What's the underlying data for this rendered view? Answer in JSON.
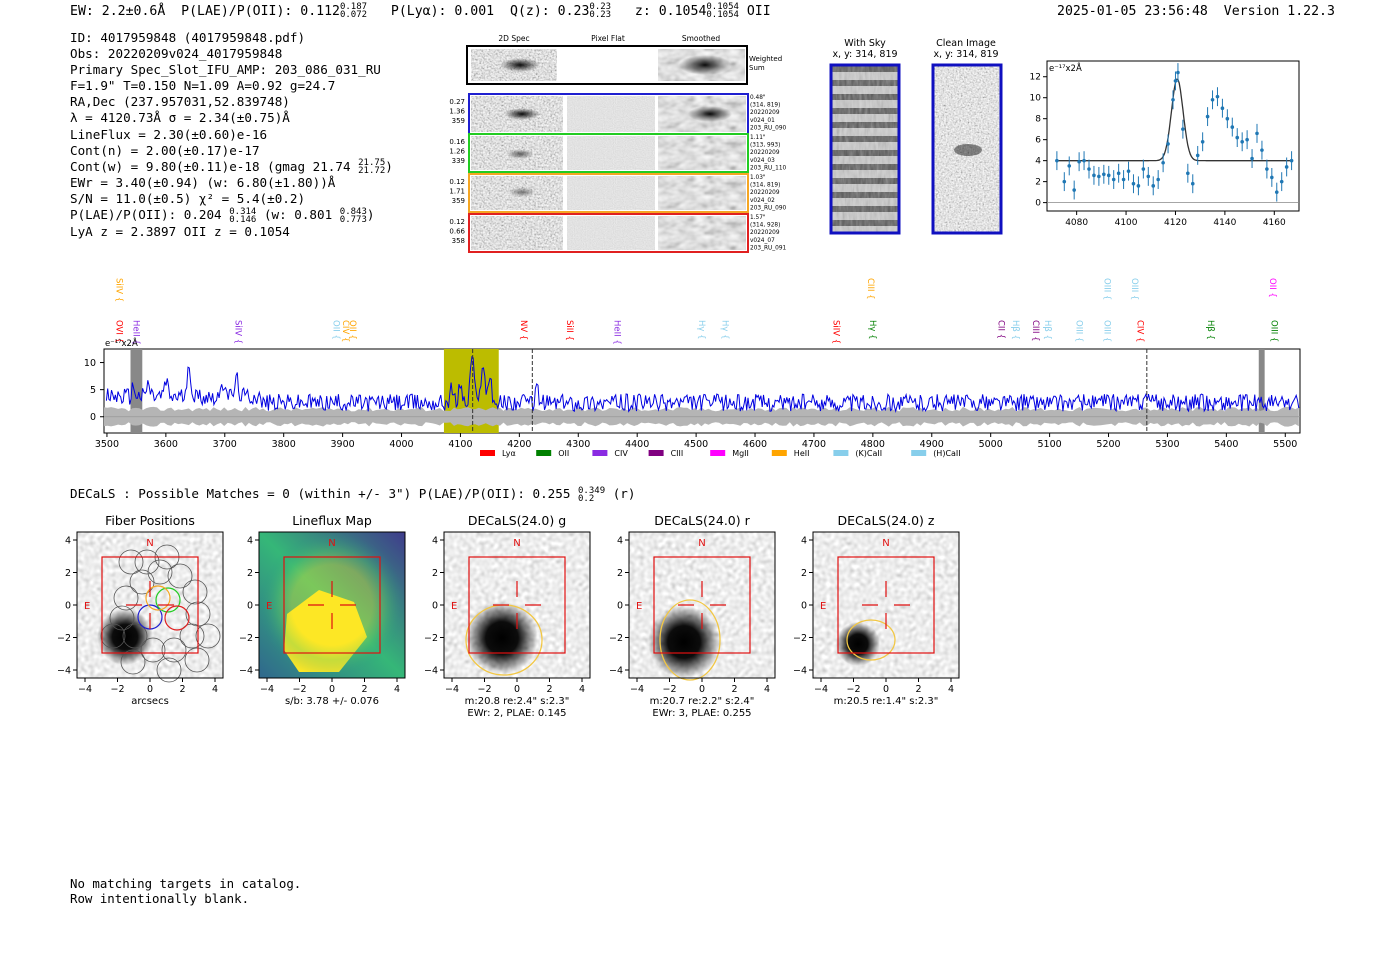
{
  "header": {
    "ew": "EW: 2.2±0.6Å",
    "plae_label": "P(LAE)/P(OII): 0.112",
    "plae_hi": "0.187",
    "plae_lo": "0.072",
    "plya": "P(Lyα): 0.001",
    "qz_label": "Q(z): 0.23",
    "qz_hi": "0.23",
    "qz_lo": "0.23",
    "z_label": "z: 0.1054",
    "z_hi": "0.1054",
    "z_lo": "0.1054",
    "z_line": "OII",
    "timestamp": "2025-01-05 23:56:48",
    "version": "Version 1.22.3"
  },
  "info": {
    "id": "ID: 4017959848 (4017959848.pdf)",
    "obs": "Obs: 20220209v024_4017959848",
    "slot": "Primary Spec_Slot_IFU_AMP: 203_086_031_RU",
    "fit": "F=1.9\"  T=0.150  N=1.09  A=0.92  g=24.7",
    "radec": "RA,Dec (237.957031,52.839748)",
    "lambda": "λ = 4120.73Å   σ = 2.34(±0.75)Å",
    "lineflux": "LineFlux = 2.30(±0.60)e-16",
    "contn": "Cont(n) = 2.00(±0.17)e-17",
    "contw": "Cont(w) = 9.80(±0.11)e-18 (gmag 21.74",
    "contw_hi": "21.75",
    "contw_lo": "21.72",
    "contw_end": ")",
    "ewr": "EWr = 3.40(±0.94) (w: 6.80(±1.80))Å",
    "sn": "S/N = 11.0(±0.5)  χ² = 5.4(±0.2)",
    "plae": "P(LAE)/P(OII): 0.204",
    "plae_hi": "0.314",
    "plae_lo": "0.146",
    "plae_w": "(w: 0.801",
    "plae_w_hi": "0.843",
    "plae_w_lo": "0.773",
    "plae_end": ")",
    "lyaz": "LyA z = 2.3897   OII z = 0.1054"
  },
  "cutouts": {
    "headers": [
      "2D Spec",
      "Pixel Flat",
      "Smoothed"
    ],
    "weighted_label_1": "Weighted",
    "weighted_label_2": "Sum",
    "fibers": [
      {
        "color": "#1f1fd0",
        "left": [
          "0.27",
          "1.36",
          "359"
        ],
        "right": [
          "0.48\"",
          "(314, 819)",
          "20220209",
          "v024_01",
          "203_RU_090"
        ]
      },
      {
        "color": "#22cc22",
        "left": [
          "0.16",
          "1.26",
          "339"
        ],
        "right": [
          "1.11\"",
          "(313, 993)",
          "20220209",
          "v024_03",
          "203_RU_110"
        ]
      },
      {
        "color": "#f5a623",
        "left": [
          "0.12",
          "1.71",
          "359"
        ],
        "right": [
          "1.03\"",
          "(314, 819)",
          "20220209",
          "v024_02",
          "203_RU_090"
        ]
      },
      {
        "color": "#e02020",
        "left": [
          "0.12",
          "0.66",
          "358"
        ],
        "right": [
          "1.57\"",
          "(314, 928)",
          "20220209",
          "v024_07",
          "203_RU_091"
        ]
      }
    ]
  },
  "sky": {
    "with_sky_title": "With Sky",
    "with_sky_coords": "x, y: 314, 819",
    "clean_title": "Clean Image",
    "clean_coords": "x, y: 314, 819"
  },
  "zoom_chart": {
    "unit_label": "e⁻¹⁷x2Å",
    "x_ticks": [
      "4080",
      "4100",
      "4120",
      "4140",
      "4160"
    ],
    "y_ticks": [
      "0",
      "2",
      "4",
      "6",
      "8",
      "10",
      "12"
    ]
  },
  "spectrum": {
    "unit_label": "e⁻¹⁷x2Å",
    "x_ticks": [
      "3500",
      "3600",
      "3700",
      "3800",
      "3900",
      "4000",
      "4100",
      "4200",
      "4300",
      "4400",
      "4500",
      "4600",
      "4700",
      "4800",
      "4900",
      "5000",
      "5100",
      "5200",
      "5300",
      "5400",
      "5500"
    ],
    "y_ticks": [
      "0",
      "5",
      "10"
    ],
    "legend": [
      {
        "label": "Lyα",
        "color": "#ff0000"
      },
      {
        "label": "OII",
        "color": "#008000"
      },
      {
        "label": "CIV",
        "color": "#8a2be2"
      },
      {
        "label": "CIII",
        "color": "#800080"
      },
      {
        "label": "MgII",
        "color": "#ff00ff"
      },
      {
        "label": "HeII",
        "color": "#ffa500"
      },
      {
        "label": "(K)CaII",
        "color": "#87ceeb"
      },
      {
        "label": "(H)CaII",
        "color": "#87ceeb"
      }
    ],
    "line_labels": [
      {
        "text": "OVI",
        "color": "#ff0000",
        "wl": 3521,
        "row": "low"
      },
      {
        "text": "SiIV",
        "color": "#ffa500",
        "wl": 3521,
        "row": "high"
      },
      {
        "text": "HeII",
        "color": "#8a2be2",
        "wl": 3550,
        "row": "low"
      },
      {
        "text": "SiIV",
        "color": "#8a2be2",
        "wl": 3723,
        "row": "low"
      },
      {
        "text": "OII",
        "color": "#87ceeb",
        "wl": 3890,
        "row": "low"
      },
      {
        "text": "CIV",
        "color": "#ffa500",
        "wl": 3906,
        "row": "low"
      },
      {
        "text": "OII",
        "color": "#ffa500",
        "wl": 3918,
        "row": "low"
      },
      {
        "text": "NV",
        "color": "#ff0000",
        "wl": 4208,
        "row": "low"
      },
      {
        "text": "SiII",
        "color": "#ff0000",
        "wl": 4286,
        "row": "low"
      },
      {
        "text": "HeII",
        "color": "#8a2be2",
        "wl": 4367,
        "row": "low"
      },
      {
        "text": "Hγ",
        "color": "#87ceeb",
        "wl": 4510,
        "row": "low"
      },
      {
        "text": "Hγ",
        "color": "#87ceeb",
        "wl": 4550,
        "row": "low"
      },
      {
        "text": "SiIV",
        "color": "#ff0000",
        "wl": 4738,
        "row": "low"
      },
      {
        "text": "CIII",
        "color": "#ffa500",
        "wl": 4797,
        "row": "high"
      },
      {
        "text": "Hγ",
        "color": "#008000",
        "wl": 4800,
        "row": "low"
      },
      {
        "text": "CII",
        "color": "#800080",
        "wl": 5018,
        "row": "low"
      },
      {
        "text": "Hβ",
        "color": "#87ceeb",
        "wl": 5043,
        "row": "low"
      },
      {
        "text": "CIII",
        "color": "#800080",
        "wl": 5077,
        "row": "low"
      },
      {
        "text": "Hβ",
        "color": "#87ceeb",
        "wl": 5097,
        "row": "low"
      },
      {
        "text": "OIII",
        "color": "#87ceeb",
        "wl": 5151,
        "row": "low"
      },
      {
        "text": "OIII",
        "color": "#87ceeb",
        "wl": 5198,
        "row": "high"
      },
      {
        "text": "OIII",
        "color": "#87ceeb",
        "wl": 5198,
        "row": "low"
      },
      {
        "text": "OIII",
        "color": "#87ceeb",
        "wl": 5245,
        "row": "high"
      },
      {
        "text": "CIV",
        "color": "#ff0000",
        "wl": 5254,
        "row": "low"
      },
      {
        "text": "Hβ",
        "color": "#008000",
        "wl": 5374,
        "row": "low"
      },
      {
        "text": "OII",
        "color": "#ff00ff",
        "wl": 5479,
        "row": "high"
      },
      {
        "text": "OIII",
        "color": "#008000",
        "wl": 5482,
        "row": "low"
      }
    ]
  },
  "decals": {
    "summary": "DECaLS : Possible Matches = 0 (within +/- 3\")  P(LAE)/P(OII): 0.255",
    "summary_hi": "0.349",
    "summary_lo": "0.2",
    "summary_end": "(r)",
    "panels": [
      {
        "title": "Fiber Positions",
        "caption1": "arcsecs",
        "caption2": ""
      },
      {
        "title": "Lineflux Map",
        "caption1": "s/b: 3.78 +/- 0.076",
        "caption2": ""
      },
      {
        "title": "DECaLS(24.0) g",
        "caption1": "m:20.8  re:2.4\"  s:2.3\"",
        "caption2": "EWr: 2, PLAE: 0.145"
      },
      {
        "title": "DECaLS(24.0) r",
        "caption1": "m:20.7  re:2.2\"  s:2.4\"",
        "caption2": "EWr: 3, PLAE: 0.255"
      },
      {
        "title": "DECaLS(24.0) z",
        "caption1": "m:20.5  re:1.4\"  s:2.3\"",
        "caption2": ""
      }
    ],
    "axis_ticks": [
      "−4",
      "−2",
      "0",
      "2",
      "4"
    ],
    "north": "N",
    "east": "E"
  },
  "footer": {
    "line1": "No matching targets in catalog.",
    "line2": "Row intentionally blank."
  },
  "chart_data": [
    {
      "type": "line",
      "title": "Zoomed emission line fit",
      "ylabel": "e⁻¹⁷x2Å",
      "xlim": [
        4068,
        4170
      ],
      "ylim": [
        -0.8,
        13.5
      ],
      "x": [
        4072,
        4075,
        4077,
        4079,
        4081,
        4083,
        4085,
        4087,
        4089,
        4091,
        4093,
        4095,
        4097,
        4099,
        4101,
        4103,
        4105,
        4107,
        4109,
        4111,
        4113,
        4115,
        4117,
        4119,
        4120,
        4121,
        4123,
        4125,
        4127,
        4129,
        4131,
        4133,
        4135,
        4137,
        4139,
        4141,
        4143,
        4145,
        4147,
        4149,
        4151,
        4153,
        4155,
        4157,
        4159,
        4161,
        4163,
        4165,
        4167
      ],
      "y": [
        4.0,
        2.0,
        3.5,
        1.2,
        3.9,
        4.0,
        3.2,
        2.6,
        2.5,
        2.7,
        2.6,
        2.2,
        2.8,
        2.2,
        3.0,
        1.8,
        1.6,
        3.2,
        2.5,
        1.6,
        2.2,
        3.8,
        5.6,
        9.8,
        11.6,
        12.4,
        7.0,
        2.8,
        1.8,
        4.5,
        5.8,
        8.2,
        9.8,
        10.1,
        9.0,
        8.0,
        7.2,
        6.2,
        5.8,
        6.0,
        4.2,
        6.6,
        5.0,
        3.2,
        2.4,
        1.0,
        2.0,
        3.4,
        4.0
      ],
      "errors": 0.9,
      "model": {
        "continuum": 4.0,
        "center": 4120.73,
        "sigma": 2.34,
        "amplitude": 7.8
      }
    },
    {
      "type": "line",
      "title": "Full spectrum",
      "ylabel": "e⁻¹⁷x2Å",
      "xlim": [
        3495,
        5525
      ],
      "ylim": [
        -3,
        12.5
      ],
      "highlight_ranges": [
        [
          4072,
          4165
        ]
      ],
      "masked_ranges": [
        [
          3540,
          3560
        ],
        [
          5455,
          5465
        ]
      ],
      "markers": [
        4120.73,
        4222,
        5265
      ],
      "peaks": [
        {
          "x": 3545,
          "y": 5.5
        },
        {
          "x": 3570,
          "y": 6.0
        },
        {
          "x": 3600,
          "y": 6.5
        },
        {
          "x": 3640,
          "y": 9.0
        },
        {
          "x": 3700,
          "y": 6.5
        },
        {
          "x": 3720,
          "y": 7.0
        },
        {
          "x": 4085,
          "y": 5.0
        },
        {
          "x": 4100,
          "y": 6.0
        },
        {
          "x": 4120,
          "y": 12.0
        },
        {
          "x": 4138,
          "y": 10.5
        },
        {
          "x": 4150,
          "y": 8.0
        },
        {
          "x": 4230,
          "y": 5.0
        },
        {
          "x": 5265,
          "y": 4.5
        }
      ],
      "continuum_level": 2.6,
      "error_band": 1.4
    }
  ]
}
